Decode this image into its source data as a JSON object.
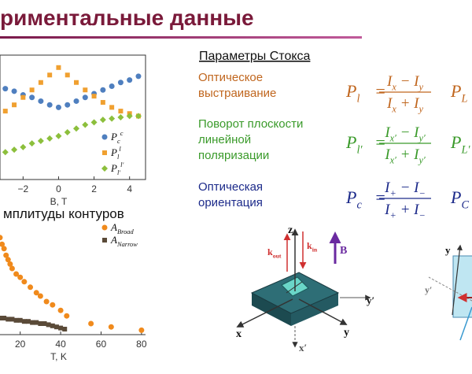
{
  "header": {
    "title": "риментальные данные"
  },
  "chart_data": [
    {
      "type": "scatter",
      "xlabel": "B, T",
      "xlim": [
        -3.3,
        4.9
      ],
      "ylim": [
        0,
        1
      ],
      "xticks": [
        {
          "value": -2,
          "label": "−2"
        },
        0,
        2,
        4
      ],
      "legend": "lower right",
      "series": [
        {
          "name": "P",
          "sub": "c",
          "sup": "c",
          "color": "#4f7fbf",
          "marker": "circle",
          "x": [
            -3,
            -2.5,
            -2,
            -1.5,
            -1,
            -0.5,
            0,
            0.5,
            1,
            1.5,
            2,
            2.5,
            3,
            3.5,
            4,
            4.5
          ],
          "values": [
            0.73,
            0.71,
            0.68,
            0.66,
            0.63,
            0.6,
            0.58,
            0.6,
            0.63,
            0.66,
            0.69,
            0.72,
            0.75,
            0.78,
            0.8,
            0.83
          ]
        },
        {
          "name": "P",
          "sub": "l",
          "sup": "l",
          "color": "#f0a030",
          "marker": "square",
          "x": [
            -3,
            -2.5,
            -2,
            -1.5,
            -1,
            -0.5,
            0,
            0.5,
            1,
            1.5,
            2,
            2.5,
            3,
            3.5,
            4,
            4.5
          ],
          "values": [
            0.55,
            0.6,
            0.66,
            0.72,
            0.78,
            0.84,
            0.9,
            0.84,
            0.78,
            0.72,
            0.67,
            0.62,
            0.58,
            0.55,
            0.53,
            0.51
          ]
        },
        {
          "name": "P",
          "sub": "l′",
          "sup": "l′",
          "color": "#8cbf3c",
          "marker": "diamond",
          "x": [
            -3,
            -2.5,
            -2,
            -1.5,
            -1,
            -0.5,
            0,
            0.5,
            1,
            1.5,
            2,
            2.5,
            3,
            3.5,
            4,
            4.5
          ],
          "values": [
            0.22,
            0.24,
            0.26,
            0.29,
            0.31,
            0.33,
            0.35,
            0.38,
            0.41,
            0.44,
            0.46,
            0.48,
            0.49,
            0.5,
            0.51,
            0.51
          ]
        }
      ]
    },
    {
      "type": "scatter",
      "title": "мплитуды контуров",
      "xlabel": "T, K",
      "xlim": [
        10,
        82
      ],
      "ylim": [
        0,
        1
      ],
      "xticks": [
        20,
        40,
        60,
        80
      ],
      "legend": "upper right",
      "series": [
        {
          "name": "A",
          "sub": "Broad",
          "color": "#f08a1c",
          "marker": "circle",
          "x": [
            10,
            11,
            12,
            13,
            14,
            15,
            16,
            18,
            20,
            22,
            25,
            28,
            30,
            33,
            36,
            40,
            43,
            55,
            65,
            80
          ],
          "values": [
            0.88,
            0.82,
            0.78,
            0.72,
            0.68,
            0.64,
            0.6,
            0.55,
            0.52,
            0.48,
            0.43,
            0.38,
            0.35,
            0.3,
            0.27,
            0.22,
            0.17,
            0.1,
            0.07,
            0.04
          ]
        },
        {
          "name": "A",
          "sub": "Narrow",
          "color": "#5a4a38",
          "marker": "square",
          "x": [
            10,
            12,
            14,
            16,
            18,
            20,
            22,
            24,
            26,
            28,
            30,
            32,
            34,
            36,
            38,
            40,
            42
          ],
          "values": [
            0.15,
            0.15,
            0.14,
            0.14,
            0.13,
            0.13,
            0.12,
            0.12,
            0.11,
            0.11,
            0.1,
            0.1,
            0.09,
            0.08,
            0.07,
            0.06,
            0.05
          ]
        }
      ]
    }
  ],
  "stokes": {
    "title": "Параметры Стокса",
    "rows": [
      {
        "label": [
          "Оптическое",
          "выстраивание"
        ],
        "color": "#c0661e",
        "formula": {
          "lhs": [
            {
              "t": "P",
              "sub": "l"
            }
          ],
          "eq": "=",
          "num": [
            {
              "t": "I",
              "sub": "x"
            },
            {
              "t": " − "
            },
            {
              "t": "I",
              "sub": "y"
            }
          ],
          "den": [
            {
              "t": "I",
              "sub": "x"
            },
            {
              "t": " + "
            },
            {
              "t": "I",
              "sub": "y"
            }
          ]
        },
        "cut": [
          {
            "t": "P",
            "sub": "L"
          }
        ]
      },
      {
        "label": [
          "Поворот плоскости",
          "линейной",
          "поляризации"
        ],
        "color": "#3a9a2a",
        "formula": {
          "lhs": [
            {
              "t": "P",
              "sub": "l′"
            }
          ],
          "eq": "=",
          "num": [
            {
              "t": "I",
              "sub": "x′"
            },
            {
              "t": " − "
            },
            {
              "t": "I",
              "sub": "y′"
            }
          ],
          "den": [
            {
              "t": "I",
              "sub": "x′"
            },
            {
              "t": " + "
            },
            {
              "t": "I",
              "sub": "y′"
            }
          ]
        },
        "cut": [
          {
            "t": "P",
            "sub": "L′"
          }
        ]
      },
      {
        "label": [
          "Оптическая",
          "ориентация"
        ],
        "color": "#1c2a8a",
        "formula": {
          "lhs": [
            {
              "t": "P",
              "sub": "c"
            }
          ],
          "eq": "=",
          "num": [
            {
              "t": "I",
              "sub": "+"
            },
            {
              "t": " − "
            },
            {
              "t": "I",
              "sub": "−"
            }
          ],
          "den": [
            {
              "t": "I",
              "sub": "+"
            },
            {
              "t": " + "
            },
            {
              "t": "I",
              "sub": "−"
            }
          ]
        },
        "cut": [
          {
            "t": "P",
            "sub": "C"
          }
        ]
      }
    ]
  },
  "diagram": {
    "labels": [
      [
        {
          "t": "z"
        }
      ],
      [
        {
          "t": "k",
          "sub": "out"
        }
      ],
      [
        {
          "t": "k",
          "sub": "in"
        }
      ],
      [
        {
          "t": "B"
        }
      ],
      [
        {
          "t": "y′"
        }
      ],
      [
        {
          "t": "x"
        }
      ],
      [
        {
          "t": "y"
        }
      ],
      [
        {
          "t": "x′"
        }
      ],
      [
        {
          "t": "y"
        }
      ],
      [
        {
          "t": "y′"
        }
      ]
    ]
  }
}
